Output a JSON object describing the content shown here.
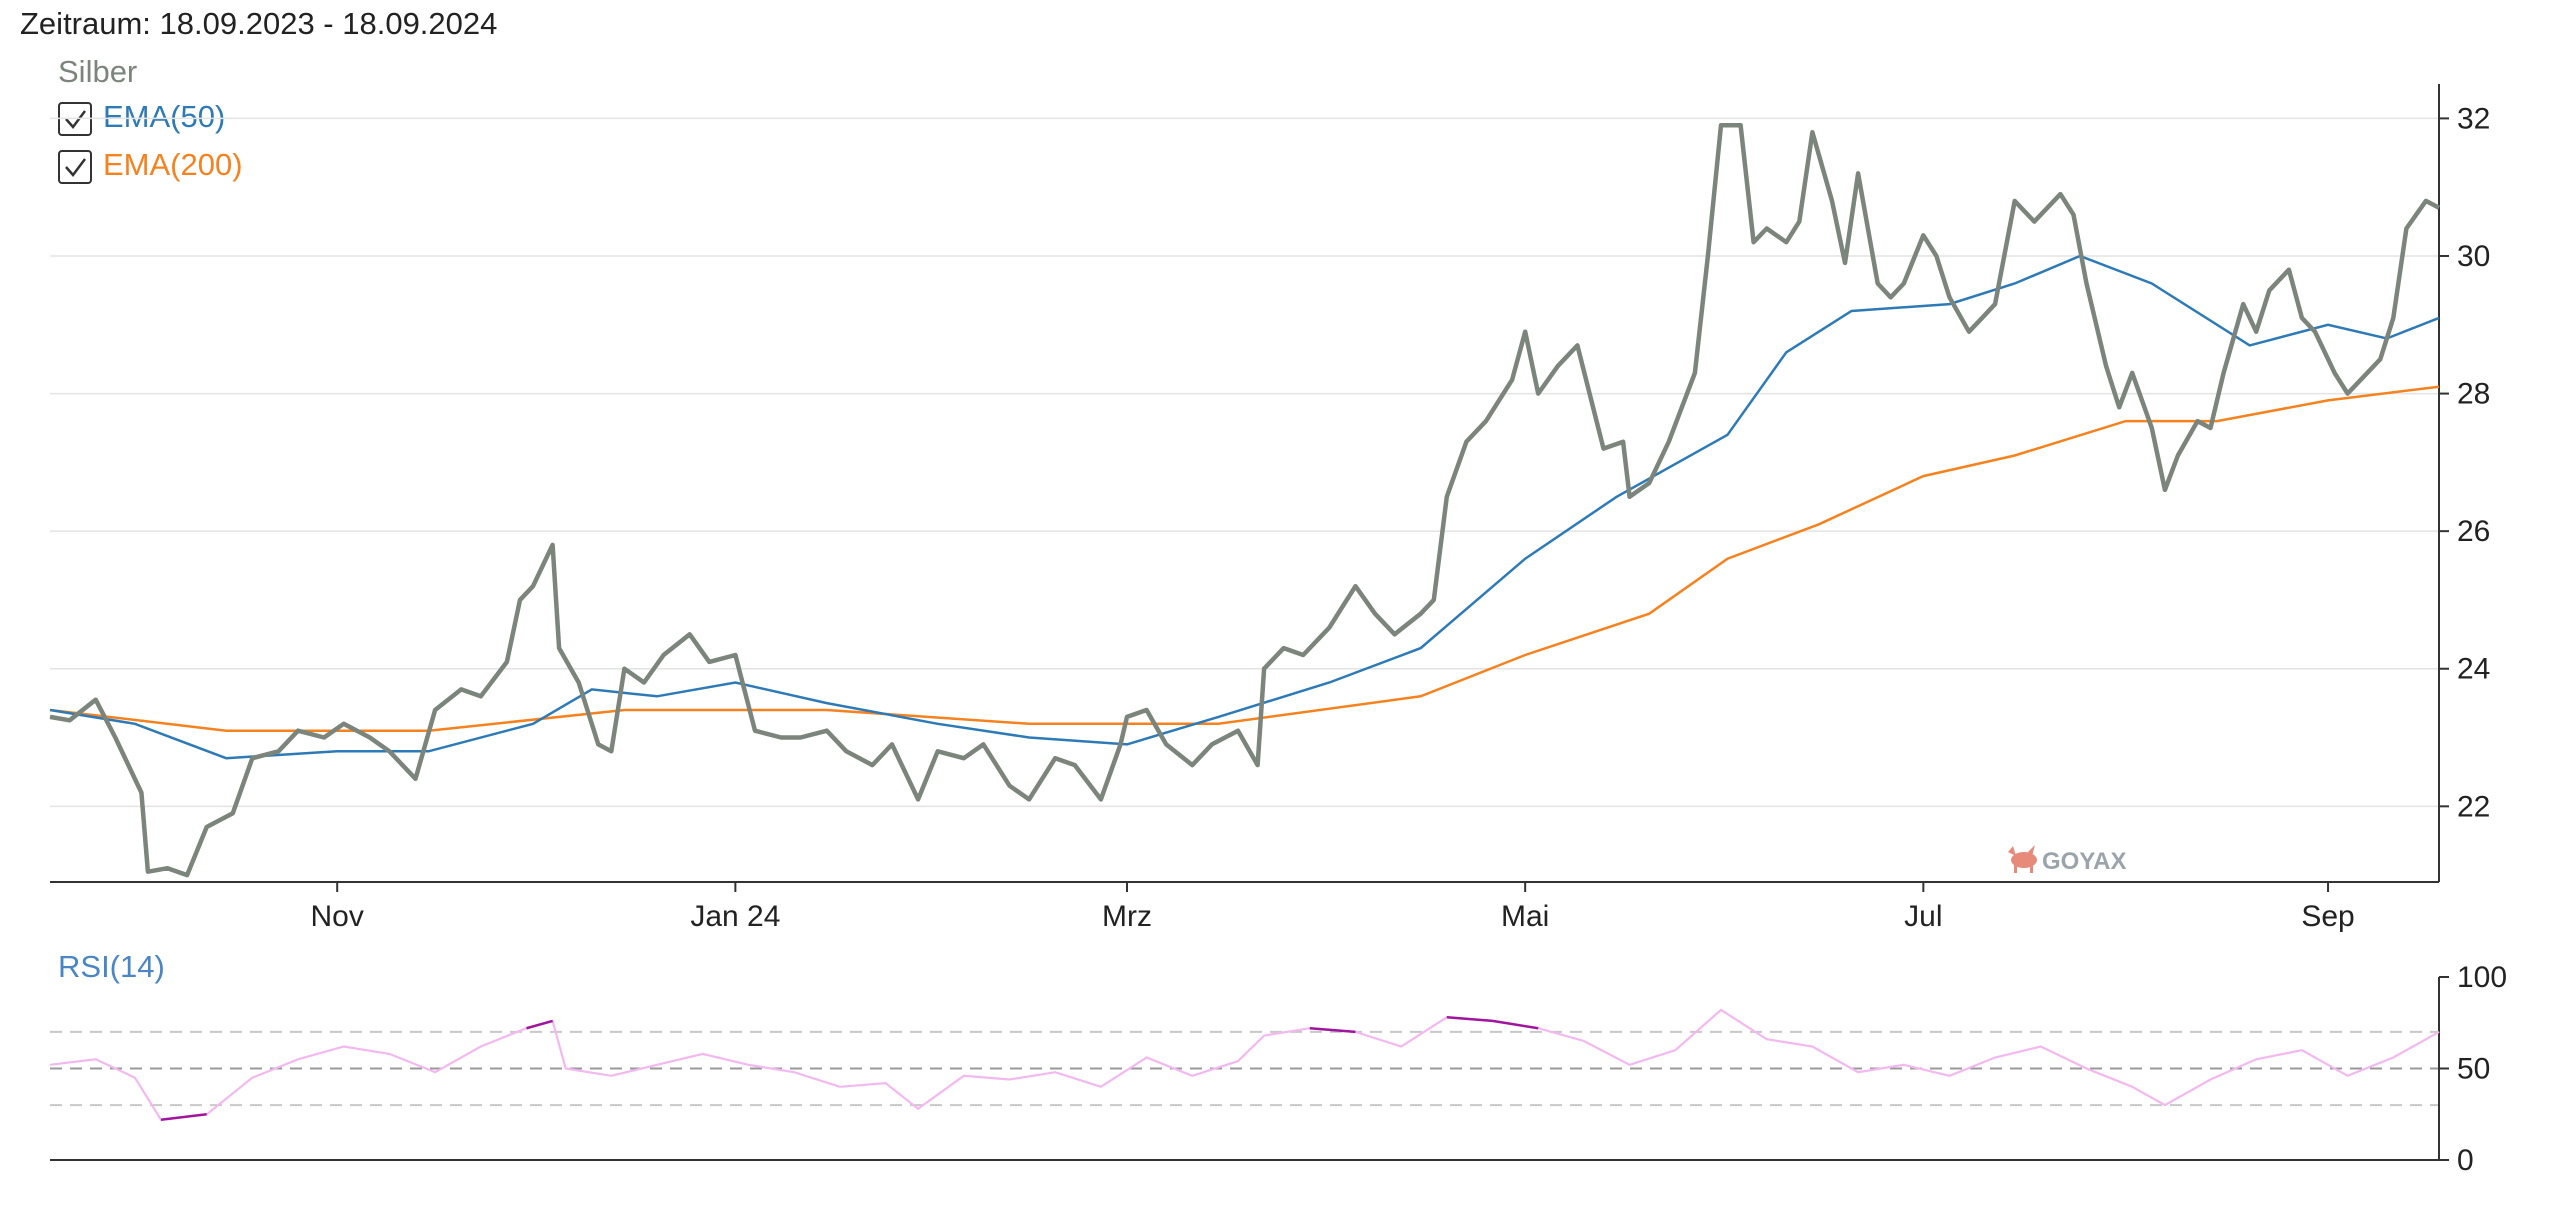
{
  "header": {
    "period": "Zeitraum: 18.09.2023 - 18.09.2024"
  },
  "legend": {
    "price_label": "Silber",
    "ema50_label": "EMA(50)",
    "ema200_label": "EMA(200)",
    "ema50_checked": true,
    "ema200_checked": true
  },
  "watermark": "GOYAX",
  "colors": {
    "price": "#7b857b",
    "ema50": "#2e7ab6",
    "ema200": "#f5821f",
    "rsi_label": "#4a86c5",
    "rsi_line": "#f3b8f0",
    "rsi_extreme": "#a0159e"
  },
  "chart_data": [
    {
      "type": "line",
      "x_range": [
        "2023-09-18",
        "2024-09-18"
      ],
      "ylim": [
        20.9,
        32.5
      ],
      "yticks": [
        22,
        24,
        26,
        28,
        30,
        32
      ],
      "xticks": [
        {
          "label": "Nov",
          "date": "2023-11-01"
        },
        {
          "label": "Jan 24",
          "date": "2024-01-01"
        },
        {
          "label": "Mrz",
          "date": "2024-03-01"
        },
        {
          "label": "Mai",
          "date": "2024-05-01"
        },
        {
          "label": "Jul",
          "date": "2024-07-01"
        },
        {
          "label": "Sep",
          "date": "2024-09-01"
        }
      ],
      "grid": true,
      "series": [
        {
          "name": "Silber",
          "points": [
            [
              "2023-09-18",
              23.3
            ],
            [
              "2023-09-21",
              23.25
            ],
            [
              "2023-09-25",
              23.55
            ],
            [
              "2023-09-28",
              23.0
            ],
            [
              "2023-10-02",
              22.2
            ],
            [
              "2023-10-03",
              21.05
            ],
            [
              "2023-10-06",
              21.1
            ],
            [
              "2023-10-09",
              21.0
            ],
            [
              "2023-10-12",
              21.7
            ],
            [
              "2023-10-16",
              21.9
            ],
            [
              "2023-10-19",
              22.7
            ],
            [
              "2023-10-23",
              22.8
            ],
            [
              "2023-10-26",
              23.1
            ],
            [
              "2023-10-30",
              23.0
            ],
            [
              "2023-11-02",
              23.2
            ],
            [
              "2023-11-06",
              23.0
            ],
            [
              "2023-11-09",
              22.8
            ],
            [
              "2023-11-13",
              22.4
            ],
            [
              "2023-11-16",
              23.4
            ],
            [
              "2023-11-20",
              23.7
            ],
            [
              "2023-11-23",
              23.6
            ],
            [
              "2023-11-27",
              24.1
            ],
            [
              "2023-11-29",
              25.0
            ],
            [
              "2023-12-01",
              25.2
            ],
            [
              "2023-12-04",
              25.8
            ],
            [
              "2023-12-05",
              24.3
            ],
            [
              "2023-12-08",
              23.8
            ],
            [
              "2023-12-11",
              22.9
            ],
            [
              "2023-12-13",
              22.8
            ],
            [
              "2023-12-15",
              24.0
            ],
            [
              "2023-12-18",
              23.8
            ],
            [
              "2023-12-21",
              24.2
            ],
            [
              "2023-12-25",
              24.5
            ],
            [
              "2023-12-28",
              24.1
            ],
            [
              "2024-01-01",
              24.2
            ],
            [
              "2024-01-04",
              23.1
            ],
            [
              "2024-01-08",
              23.0
            ],
            [
              "2024-01-11",
              23.0
            ],
            [
              "2024-01-15",
              23.1
            ],
            [
              "2024-01-18",
              22.8
            ],
            [
              "2024-01-22",
              22.6
            ],
            [
              "2024-01-25",
              22.9
            ],
            [
              "2024-01-29",
              22.1
            ],
            [
              "2024-02-01",
              22.8
            ],
            [
              "2024-02-05",
              22.7
            ],
            [
              "2024-02-08",
              22.9
            ],
            [
              "2024-02-12",
              22.3
            ],
            [
              "2024-02-15",
              22.1
            ],
            [
              "2024-02-19",
              22.7
            ],
            [
              "2024-02-22",
              22.6
            ],
            [
              "2024-02-26",
              22.1
            ],
            [
              "2024-02-29",
              22.9
            ],
            [
              "2024-03-01",
              23.3
            ],
            [
              "2024-03-04",
              23.4
            ],
            [
              "2024-03-07",
              22.9
            ],
            [
              "2024-03-11",
              22.6
            ],
            [
              "2024-03-14",
              22.9
            ],
            [
              "2024-03-18",
              23.1
            ],
            [
              "2024-03-21",
              22.6
            ],
            [
              "2024-03-22",
              24.0
            ],
            [
              "2024-03-25",
              24.3
            ],
            [
              "2024-03-28",
              24.2
            ],
            [
              "2024-04-01",
              24.6
            ],
            [
              "2024-04-03",
              24.9
            ],
            [
              "2024-04-05",
              25.2
            ],
            [
              "2024-04-08",
              24.8
            ],
            [
              "2024-04-11",
              24.5
            ],
            [
              "2024-04-15",
              24.8
            ],
            [
              "2024-04-17",
              25.0
            ],
            [
              "2024-04-19",
              26.5
            ],
            [
              "2024-04-22",
              27.3
            ],
            [
              "2024-04-25",
              27.6
            ],
            [
              "2024-04-29",
              28.2
            ],
            [
              "2024-05-01",
              28.9
            ],
            [
              "2024-05-03",
              28.0
            ],
            [
              "2024-05-06",
              28.4
            ],
            [
              "2024-05-09",
              28.7
            ],
            [
              "2024-05-13",
              27.2
            ],
            [
              "2024-05-16",
              27.3
            ],
            [
              "2024-05-17",
              26.5
            ],
            [
              "2024-05-20",
              26.7
            ],
            [
              "2024-05-23",
              27.3
            ],
            [
              "2024-05-27",
              28.3
            ],
            [
              "2024-05-29",
              30.0
            ],
            [
              "2024-05-31",
              31.9
            ],
            [
              "2024-06-03",
              31.9
            ],
            [
              "2024-06-05",
              30.2
            ],
            [
              "2024-06-07",
              30.4
            ],
            [
              "2024-06-10",
              30.2
            ],
            [
              "2024-06-12",
              30.5
            ],
            [
              "2024-06-14",
              31.8
            ],
            [
              "2024-06-17",
              30.8
            ],
            [
              "2024-06-19",
              29.9
            ],
            [
              "2024-06-21",
              31.2
            ],
            [
              "2024-06-24",
              29.6
            ],
            [
              "2024-06-26",
              29.4
            ],
            [
              "2024-06-28",
              29.6
            ],
            [
              "2024-07-01",
              30.3
            ],
            [
              "2024-07-03",
              30.0
            ],
            [
              "2024-07-05",
              29.4
            ],
            [
              "2024-07-08",
              28.9
            ],
            [
              "2024-07-10",
              29.1
            ],
            [
              "2024-07-12",
              29.3
            ],
            [
              "2024-07-15",
              30.8
            ],
            [
              "2024-07-18",
              30.5
            ],
            [
              "2024-07-22",
              30.9
            ],
            [
              "2024-07-24",
              30.6
            ],
            [
              "2024-07-26",
              29.6
            ],
            [
              "2024-07-29",
              28.4
            ],
            [
              "2024-07-31",
              27.8
            ],
            [
              "2024-08-02",
              28.3
            ],
            [
              "2024-08-05",
              27.5
            ],
            [
              "2024-08-07",
              26.6
            ],
            [
              "2024-08-09",
              27.1
            ],
            [
              "2024-08-12",
              27.6
            ],
            [
              "2024-08-14",
              27.5
            ],
            [
              "2024-08-16",
              28.3
            ],
            [
              "2024-08-19",
              29.3
            ],
            [
              "2024-08-21",
              28.9
            ],
            [
              "2024-08-23",
              29.5
            ],
            [
              "2024-08-26",
              29.8
            ],
            [
              "2024-08-28",
              29.1
            ],
            [
              "2024-08-30",
              28.9
            ],
            [
              "2024-09-02",
              28.3
            ],
            [
              "2024-09-04",
              28.0
            ],
            [
              "2024-09-06",
              28.2
            ],
            [
              "2024-09-09",
              28.5
            ],
            [
              "2024-09-11",
              29.1
            ],
            [
              "2024-09-13",
              30.4
            ],
            [
              "2024-09-16",
              30.8
            ],
            [
              "2024-09-18",
              30.7
            ]
          ]
        },
        {
          "name": "EMA(50)",
          "points": [
            [
              "2023-09-18",
              23.4
            ],
            [
              "2023-10-01",
              23.2
            ],
            [
              "2023-10-15",
              22.7
            ],
            [
              "2023-11-01",
              22.8
            ],
            [
              "2023-11-15",
              22.8
            ],
            [
              "2023-12-01",
              23.2
            ],
            [
              "2023-12-10",
              23.7
            ],
            [
              "2023-12-20",
              23.6
            ],
            [
              "2024-01-01",
              23.8
            ],
            [
              "2024-01-15",
              23.5
            ],
            [
              "2024-02-01",
              23.2
            ],
            [
              "2024-02-15",
              23.0
            ],
            [
              "2024-03-01",
              22.9
            ],
            [
              "2024-03-15",
              23.3
            ],
            [
              "2024-04-01",
              23.8
            ],
            [
              "2024-04-15",
              24.3
            ],
            [
              "2024-05-01",
              25.6
            ],
            [
              "2024-05-15",
              26.5
            ],
            [
              "2024-06-01",
              27.4
            ],
            [
              "2024-06-10",
              28.6
            ],
            [
              "2024-06-20",
              29.2
            ],
            [
              "2024-07-05",
              29.3
            ],
            [
              "2024-07-15",
              29.6
            ],
            [
              "2024-07-25",
              30.0
            ],
            [
              "2024-08-05",
              29.6
            ],
            [
              "2024-08-20",
              28.7
            ],
            [
              "2024-09-01",
              29.0
            ],
            [
              "2024-09-10",
              28.8
            ],
            [
              "2024-09-18",
              29.1
            ]
          ]
        },
        {
          "name": "EMA(200)",
          "points": [
            [
              "2023-09-18",
              23.4
            ],
            [
              "2023-10-15",
              23.1
            ],
            [
              "2023-11-15",
              23.1
            ],
            [
              "2023-12-15",
              23.4
            ],
            [
              "2024-01-15",
              23.4
            ],
            [
              "2024-02-15",
              23.2
            ],
            [
              "2024-03-15",
              23.2
            ],
            [
              "2024-04-15",
              23.6
            ],
            [
              "2024-05-01",
              24.2
            ],
            [
              "2024-05-20",
              24.8
            ],
            [
              "2024-06-01",
              25.6
            ],
            [
              "2024-06-15",
              26.1
            ],
            [
              "2024-07-01",
              26.8
            ],
            [
              "2024-07-15",
              27.1
            ],
            [
              "2024-08-01",
              27.6
            ],
            [
              "2024-08-15",
              27.6
            ],
            [
              "2024-09-01",
              27.9
            ],
            [
              "2024-09-18",
              28.1
            ]
          ]
        }
      ]
    },
    {
      "type": "line",
      "title": "RSI(14)",
      "x_range": [
        "2023-09-18",
        "2024-09-18"
      ],
      "ylim": [
        0,
        100
      ],
      "yticks": [
        0,
        50,
        100
      ],
      "reference_lines": [
        30,
        50,
        70
      ],
      "series": [
        {
          "name": "RSI(14)",
          "points": [
            [
              "2023-09-18",
              52
            ],
            [
              "2023-09-25",
              55
            ],
            [
              "2023-10-01",
              45
            ],
            [
              "2023-10-05",
              22
            ],
            [
              "2023-10-12",
              25
            ],
            [
              "2023-10-19",
              45
            ],
            [
              "2023-10-26",
              55
            ],
            [
              "2023-11-02",
              62
            ],
            [
              "2023-11-09",
              58
            ],
            [
              "2023-11-16",
              48
            ],
            [
              "2023-11-23",
              62
            ],
            [
              "2023-11-30",
              72
            ],
            [
              "2023-12-04",
              76
            ],
            [
              "2023-12-06",
              50
            ],
            [
              "2023-12-13",
              46
            ],
            [
              "2023-12-20",
              52
            ],
            [
              "2023-12-27",
              58
            ],
            [
              "2024-01-03",
              52
            ],
            [
              "2024-01-10",
              48
            ],
            [
              "2024-01-17",
              40
            ],
            [
              "2024-01-24",
              42
            ],
            [
              "2024-01-29",
              28
            ],
            [
              "2024-02-05",
              46
            ],
            [
              "2024-02-12",
              44
            ],
            [
              "2024-02-19",
              48
            ],
            [
              "2024-02-26",
              40
            ],
            [
              "2024-03-04",
              56
            ],
            [
              "2024-03-11",
              46
            ],
            [
              "2024-03-18",
              54
            ],
            [
              "2024-03-22",
              68
            ],
            [
              "2024-03-29",
              72
            ],
            [
              "2024-04-05",
              70
            ],
            [
              "2024-04-12",
              62
            ],
            [
              "2024-04-19",
              78
            ],
            [
              "2024-04-26",
              76
            ],
            [
              "2024-05-03",
              72
            ],
            [
              "2024-05-10",
              65
            ],
            [
              "2024-05-17",
              52
            ],
            [
              "2024-05-24",
              60
            ],
            [
              "2024-05-31",
              82
            ],
            [
              "2024-06-07",
              66
            ],
            [
              "2024-06-14",
              62
            ],
            [
              "2024-06-21",
              48
            ],
            [
              "2024-06-28",
              52
            ],
            [
              "2024-07-05",
              46
            ],
            [
              "2024-07-12",
              56
            ],
            [
              "2024-07-19",
              62
            ],
            [
              "2024-07-26",
              50
            ],
            [
              "2024-08-02",
              40
            ],
            [
              "2024-08-07",
              30
            ],
            [
              "2024-08-14",
              44
            ],
            [
              "2024-08-21",
              55
            ],
            [
              "2024-08-28",
              60
            ],
            [
              "2024-09-04",
              46
            ],
            [
              "2024-09-11",
              56
            ],
            [
              "2024-09-18",
              70
            ]
          ]
        }
      ]
    }
  ]
}
